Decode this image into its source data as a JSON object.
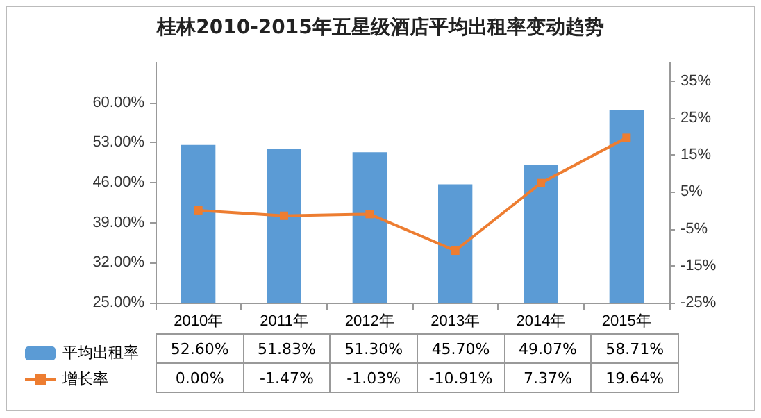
{
  "chart_data": {
    "type": "bar",
    "title": "桂林2010-2015年五星级酒店平均出租率变动趋势",
    "categories": [
      "2010年",
      "2011年",
      "2012年",
      "2013年",
      "2014年",
      "2015年"
    ],
    "series": [
      {
        "name": "平均出租率",
        "color": "#5b9bd5",
        "values": [
          52.6,
          51.83,
          51.3,
          45.7,
          49.07,
          58.71
        ],
        "value_labels": [
          "52.60%",
          "51.83%",
          "51.30%",
          "45.70%",
          "49.07%",
          "58.71%"
        ]
      },
      {
        "name": "增长率",
        "type": "line",
        "axis": "y2",
        "color": "#ed7d31",
        "marker": "square",
        "values": [
          0,
          -1.47,
          -1.03,
          -10.91,
          7.37,
          19.64
        ],
        "value_labels": [
          "0.00%",
          "-1.47%",
          "-1.03%",
          "-10.91%",
          "7.37%",
          "19.64%"
        ]
      }
    ],
    "ylim": [
      25,
      67
    ],
    "yticks": [
      {
        "value": 25,
        "label": "25.00%"
      },
      {
        "value": 32,
        "label": "32.00%"
      },
      {
        "value": 39,
        "label": "39.00%"
      },
      {
        "value": 46,
        "label": "46.00%"
      },
      {
        "value": 53,
        "label": "53.00%"
      },
      {
        "value": 60,
        "label": "60.00%"
      }
    ],
    "y2lim": [
      -25,
      40
    ],
    "y2ticks": [
      {
        "value": -25,
        "label": "-25%"
      },
      {
        "value": -15,
        "label": "-15%"
      },
      {
        "value": -5,
        "label": "-5%"
      },
      {
        "value": 5,
        "label": "5%"
      },
      {
        "value": 15,
        "label": "15%"
      },
      {
        "value": 25,
        "label": "25%"
      },
      {
        "value": 35,
        "label": "35%"
      }
    ],
    "legend": "bottom",
    "grid": false
  }
}
